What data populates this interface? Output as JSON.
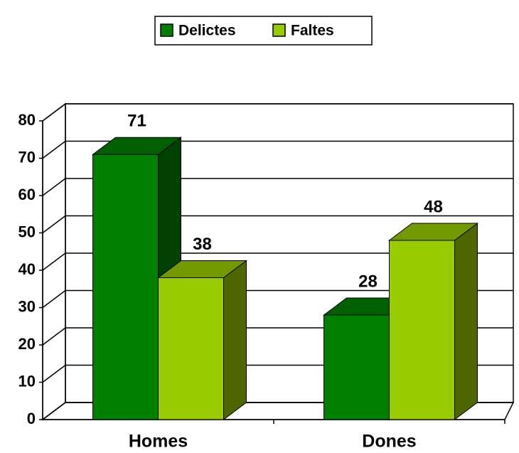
{
  "chart_data": {
    "type": "bar3d",
    "categories": [
      "Homes",
      "Dones"
    ],
    "series": [
      {
        "name": "Delictes",
        "color": "#008000",
        "values": [
          71,
          28
        ]
      },
      {
        "name": "Faltes",
        "color": "#99cc00",
        "values": [
          38,
          48
        ]
      }
    ],
    "ylim": [
      0,
      80
    ],
    "yticks": [
      0,
      10,
      20,
      30,
      40,
      50,
      60,
      70,
      80
    ],
    "grid": true,
    "legend": "top"
  }
}
